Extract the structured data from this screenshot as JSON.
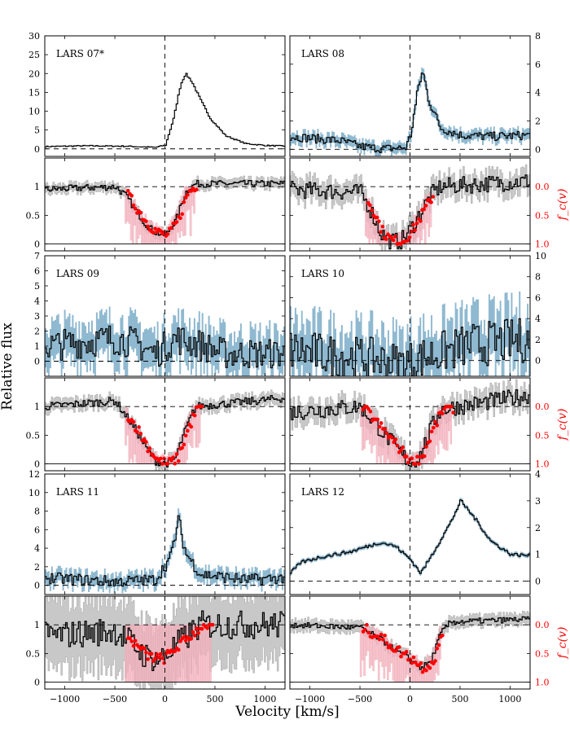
{
  "figure": {
    "ylabel": "Relative flux",
    "xlabel": "Velocity [km/s]",
    "fc_label": "f_c(v)"
  },
  "colors": {
    "lya_line": "#000000",
    "lya_error": "#8fb9d0",
    "abs_line": "#000000",
    "abs_error": "#c8c8c8",
    "fc_points": "#ff0000",
    "fc_error": "#f4b6c0",
    "fc_label": "#ff0000"
  },
  "chart_data": [
    {
      "name": "LARS 07*",
      "type": "line",
      "lya": {
        "ylim": [
          -2,
          30
        ],
        "yticks": [
          0,
          5,
          10,
          15,
          20,
          25,
          30
        ],
        "y_axis_side": "left",
        "error_band": false,
        "profile": [
          [
            -1200,
            0.6
          ],
          [
            -800,
            0.8
          ],
          [
            -400,
            0.7
          ],
          [
            -100,
            0.4
          ],
          [
            0,
            1
          ],
          [
            80,
            8
          ],
          [
            150,
            17
          ],
          [
            200,
            20
          ],
          [
            260,
            18
          ],
          [
            350,
            13
          ],
          [
            450,
            8
          ],
          [
            600,
            3.5
          ],
          [
            800,
            1.4
          ],
          [
            1000,
            0.9
          ],
          [
            1200,
            0.7
          ]
        ],
        "noise": 0.15
      },
      "abs": {
        "ylim": [
          -0.12,
          1.5
        ],
        "yticks": [
          0.0,
          0.5,
          1.0
        ],
        "y_axis_side": "left",
        "profile": [
          [
            -1200,
            0.95
          ],
          [
            -500,
            1.0
          ],
          [
            -400,
            0.85
          ],
          [
            -300,
            0.6
          ],
          [
            -200,
            0.35
          ],
          [
            -100,
            0.2
          ],
          [
            0,
            0.15
          ],
          [
            100,
            0.4
          ],
          [
            200,
            0.9
          ],
          [
            300,
            1.05
          ],
          [
            1200,
            1.05
          ]
        ],
        "noise": 0.06,
        "errband": 0.08,
        "fc_range": [
          -400,
          300
        ],
        "fc_full": false
      }
    },
    {
      "name": "LARS 08",
      "type": "line",
      "lya": {
        "ylim": [
          -0.5,
          8
        ],
        "yticks": [
          0,
          2,
          4,
          6,
          8
        ],
        "y_axis_side": "right",
        "error_band": true,
        "profile": [
          [
            -1200,
            0.9
          ],
          [
            -700,
            0.6
          ],
          [
            -500,
            0.2
          ],
          [
            -300,
            0.05
          ],
          [
            -50,
            0.1
          ],
          [
            0,
            1
          ],
          [
            80,
            4.5
          ],
          [
            120,
            5.5
          ],
          [
            180,
            3.5
          ],
          [
            300,
            1.5
          ],
          [
            500,
            1.0
          ],
          [
            800,
            0.9
          ],
          [
            1200,
            1.0
          ]
        ],
        "noise": 0.3
      },
      "abs": {
        "ylim": [
          -0.12,
          1.5
        ],
        "yticks": [
          0.0,
          0.5,
          1.0
        ],
        "y_axis_side": "left",
        "fc_axis_side": "right",
        "fc_ticks": [
          "0.0",
          "0.5",
          "1.0"
        ],
        "profile": [
          [
            -1200,
            0.95
          ],
          [
            -500,
            0.9
          ],
          [
            -400,
            0.6
          ],
          [
            -300,
            0.2
          ],
          [
            -200,
            0.05
          ],
          [
            -100,
            0.05
          ],
          [
            0,
            0.25
          ],
          [
            100,
            0.55
          ],
          [
            200,
            0.85
          ],
          [
            300,
            1.0
          ],
          [
            1200,
            1.1
          ]
        ],
        "noise": 0.15,
        "errband": 0.18,
        "fc_range": [
          -450,
          200
        ],
        "fc_full": false
      }
    },
    {
      "name": "LARS 09",
      "type": "line",
      "lya": {
        "ylim": [
          -1,
          7
        ],
        "yticks": [
          0,
          1,
          2,
          3,
          4,
          5,
          6,
          7
        ],
        "y_axis_side": "left",
        "error_band": true,
        "profile": [
          [
            -1200,
            1.0
          ],
          [
            -500,
            1.5
          ],
          [
            -300,
            1.2
          ],
          [
            -100,
            0.5
          ],
          [
            100,
            1.5
          ],
          [
            300,
            1.2
          ],
          [
            600,
            0.5
          ],
          [
            1200,
            0.5
          ]
        ],
        "noise": 1.0
      },
      "abs": {
        "ylim": [
          -0.12,
          1.5
        ],
        "yticks": [
          0.0,
          0.5,
          1.0
        ],
        "y_axis_side": "left",
        "profile": [
          [
            -1200,
            1.0
          ],
          [
            -500,
            1.1
          ],
          [
            -400,
            0.85
          ],
          [
            -300,
            0.6
          ],
          [
            -200,
            0.3
          ],
          [
            -100,
            0.05
          ],
          [
            0,
            0.0
          ],
          [
            100,
            0.1
          ],
          [
            200,
            0.6
          ],
          [
            300,
            1.0
          ],
          [
            1200,
            1.15
          ]
        ],
        "noise": 0.07,
        "errband": 0.1,
        "fc_range": [
          -400,
          350
        ],
        "fc_full": false
      }
    },
    {
      "name": "LARS 10",
      "type": "line",
      "lya": {
        "ylim": [
          -1.5,
          10
        ],
        "yticks": [
          0,
          2,
          4,
          6,
          8,
          10
        ],
        "y_axis_side": "right",
        "error_band": true,
        "profile": [
          [
            -1200,
            1.0
          ],
          [
            -800,
            0.5
          ],
          [
            -400,
            0.2
          ],
          [
            -100,
            -0.3
          ],
          [
            200,
            0.5
          ],
          [
            600,
            1.5
          ],
          [
            1200,
            2.0
          ]
        ],
        "noise": 2.0
      },
      "abs": {
        "ylim": [
          -0.12,
          1.5
        ],
        "yticks": [
          0.0,
          0.5,
          1.0
        ],
        "y_axis_side": "left",
        "fc_axis_side": "right",
        "fc_ticks": [
          "0.0",
          "0.5",
          "1.0"
        ],
        "profile": [
          [
            -1200,
            0.9
          ],
          [
            -500,
            1.0
          ],
          [
            -400,
            0.8
          ],
          [
            -250,
            0.5
          ],
          [
            -100,
            0.2
          ],
          [
            0,
            0.0
          ],
          [
            100,
            0.15
          ],
          [
            200,
            0.6
          ],
          [
            300,
            0.95
          ],
          [
            1200,
            1.2
          ]
        ],
        "noise": 0.15,
        "errband": 0.18,
        "fc_range": [
          -500,
          400
        ],
        "fc_full": false
      }
    },
    {
      "name": "LARS 11",
      "type": "line",
      "lya": {
        "ylim": [
          -1,
          12
        ],
        "yticks": [
          0,
          2,
          4,
          6,
          8,
          10,
          12
        ],
        "y_axis_side": "left",
        "error_band": true,
        "profile": [
          [
            -1200,
            0.8
          ],
          [
            -500,
            0.4
          ],
          [
            -100,
            0.6
          ],
          [
            50,
            3
          ],
          [
            130,
            7
          ],
          [
            200,
            3.5
          ],
          [
            350,
            1.2
          ],
          [
            800,
            0.6
          ],
          [
            1200,
            0.8
          ]
        ],
        "noise": 0.6
      },
      "abs": {
        "ylim": [
          -0.12,
          1.5
        ],
        "yticks": [
          0.0,
          0.5,
          1.0
        ],
        "y_axis_side": "left",
        "profile": [
          [
            -1200,
            0.8
          ],
          [
            -500,
            0.9
          ],
          [
            -350,
            0.7
          ],
          [
            -200,
            0.45
          ],
          [
            -50,
            0.4
          ],
          [
            150,
            0.7
          ],
          [
            350,
            1.0
          ],
          [
            1200,
            1.0
          ]
        ],
        "noise": 0.25,
        "errband": 0.6,
        "fc_range": [
          -400,
          450
        ],
        "fc_full": true
      }
    },
    {
      "name": "LARS 12",
      "type": "line",
      "lya": {
        "ylim": [
          -0.5,
          4
        ],
        "yticks": [
          0,
          1,
          2,
          3,
          4
        ],
        "y_axis_side": "right",
        "error_band": true,
        "profile": [
          [
            -1200,
            0.3
          ],
          [
            -1100,
            0.7
          ],
          [
            -900,
            0.9
          ],
          [
            -600,
            1.1
          ],
          [
            -300,
            1.45
          ],
          [
            -150,
            1.3
          ],
          [
            0,
            0.8
          ],
          [
            100,
            0.3
          ],
          [
            200,
            0.9
          ],
          [
            400,
            2.2
          ],
          [
            500,
            3.0
          ],
          [
            650,
            2.3
          ],
          [
            800,
            1.5
          ],
          [
            1000,
            1.0
          ],
          [
            1200,
            0.95
          ]
        ],
        "noise": 0.06
      },
      "abs": {
        "ylim": [
          -0.12,
          1.5
        ],
        "yticks": [
          0.0,
          0.5,
          1.0
        ],
        "y_axis_side": "left",
        "fc_axis_side": "right",
        "fc_ticks": [
          "0.0",
          "0.5",
          "1.0"
        ],
        "profile": [
          [
            -1200,
            1.0
          ],
          [
            -500,
            0.95
          ],
          [
            -300,
            0.75
          ],
          [
            -150,
            0.55
          ],
          [
            0,
            0.4
          ],
          [
            100,
            0.25
          ],
          [
            200,
            0.35
          ],
          [
            300,
            0.85
          ],
          [
            400,
            1.05
          ],
          [
            1200,
            1.1
          ]
        ],
        "noise": 0.05,
        "errband": 0.1,
        "fc_range": [
          -500,
          300
        ],
        "fc_full": false
      }
    }
  ],
  "xaxis": {
    "xlim": [
      -1200,
      1200
    ],
    "xticks": [
      -1000,
      -500,
      0,
      500,
      1000
    ]
  }
}
